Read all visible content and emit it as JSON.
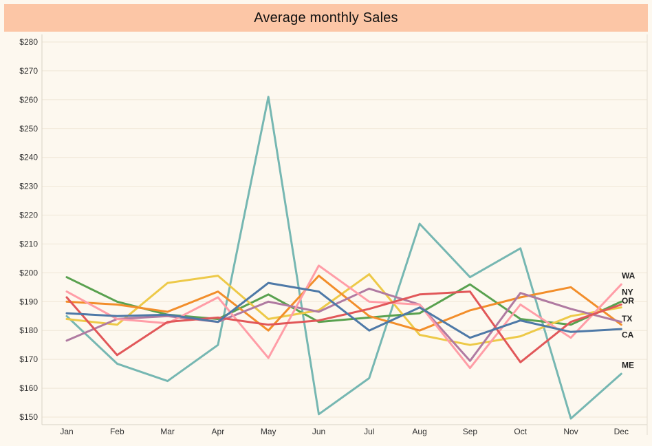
{
  "chart_data": {
    "type": "line",
    "title": "Average monthly Sales",
    "xlabel": "",
    "ylabel": "",
    "categories": [
      "Jan",
      "Feb",
      "Mar",
      "Apr",
      "May",
      "Jun",
      "Jul",
      "Aug",
      "Sep",
      "Oct",
      "Nov",
      "Dec"
    ],
    "ylim": [
      148,
      282
    ],
    "yticks": [
      150,
      160,
      170,
      180,
      190,
      200,
      210,
      220,
      230,
      240,
      250,
      260,
      270,
      280
    ],
    "ytick_labels": [
      "$150",
      "$160",
      "$170",
      "$180",
      "$190",
      "$200",
      "$210",
      "$220",
      "$230",
      "$240",
      "$250",
      "$260",
      "$270",
      "$280"
    ],
    "grid": true,
    "series": [
      {
        "name": "WA",
        "color": "#ff9da7",
        "values": [
          193.5,
          184,
          182.5,
          191.5,
          170.5,
          202.5,
          190,
          189,
          167,
          189,
          177.5,
          196
        ]
      },
      {
        "name": "NY",
        "color": "#76b7b2",
        "values": [
          185,
          168.5,
          162.5,
          175,
          261,
          151,
          163.5,
          217,
          198.5,
          208.5,
          149.5,
          165
        ]
      },
      {
        "name": "OR",
        "color": "#e15759",
        "values": [
          191.5,
          171.5,
          183,
          184.5,
          182,
          183.5,
          187.5,
          192.5,
          193.5,
          169,
          183,
          189
        ]
      },
      {
        "name": "TX",
        "color": "#f28e2b",
        "values": [
          190,
          189,
          186.5,
          193.5,
          180,
          199,
          185,
          180,
          187,
          191.5,
          195,
          182
        ]
      },
      {
        "name": "CA",
        "color": "#b07aa1",
        "values": [
          176.5,
          184,
          185,
          183,
          190,
          186.5,
          194.5,
          189,
          169.5,
          193,
          187.5,
          183
        ]
      },
      {
        "name": "ME",
        "color": "#4e79a7",
        "values": [
          186,
          185,
          185.5,
          183,
          196.5,
          193.5,
          180,
          188,
          177.5,
          183.5,
          179.5,
          180.5
        ]
      },
      {
        "color": "#59a14f",
        "values": [
          198.5,
          190,
          185.5,
          184,
          192.5,
          183,
          184.5,
          186,
          196,
          184,
          182,
          190
        ]
      },
      {
        "color": "#edc948",
        "values": [
          184,
          182,
          196.5,
          199,
          184,
          187,
          199.5,
          178.5,
          175,
          178,
          185,
          188
        ]
      }
    ],
    "end_labels": [
      {
        "text": "WA",
        "value": 199
      },
      {
        "text": "NY",
        "value": 193.3
      },
      {
        "text": "OR",
        "value": 190.3
      },
      {
        "text": "TX",
        "value": 184.1
      },
      {
        "text": "CA",
        "value": 178.5
      },
      {
        "text": "ME",
        "value": 168
      }
    ]
  }
}
